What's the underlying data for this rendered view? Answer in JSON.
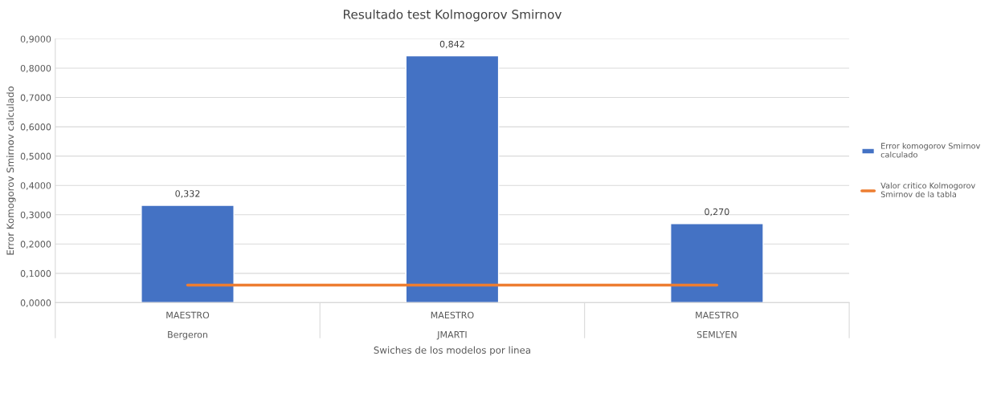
{
  "chart_data": {
    "type": "bar",
    "title": "Resultado test Kolmogorov Smirnov",
    "xlabel": "Swiches de los modelos por linea",
    "ylabel": "Error Komogorov Smirnov calculado",
    "categories": [
      "MAESTRO\nBergeron",
      "MAESTRO\nJMARTI",
      "MAESTRO\nSEMLYEN"
    ],
    "series": [
      {
        "name": "Error komogorov Smirnov\ncalculado",
        "color": "#4472c4",
        "values": [
          0.332,
          0.842,
          0.27
        ],
        "value_labels": [
          "0,332",
          "0,842",
          "0,270"
        ]
      },
      {
        "name": "Valor critico Kolmogorov\nSmirnov de la tabla",
        "type": "line",
        "color": "#ed7d31",
        "values": [
          0.06,
          0.06,
          0.06
        ]
      }
    ],
    "ylim": [
      0,
      0.9
    ],
    "yticks": [
      {
        "value": 0,
        "label": "0,0000"
      },
      {
        "value": 0.1,
        "label": "0,1000"
      },
      {
        "value": 0.2,
        "label": "0,2000"
      },
      {
        "value": 0.3,
        "label": "0,3000"
      },
      {
        "value": 0.4,
        "label": "0,4000"
      },
      {
        "value": 0.5,
        "label": "0,5000"
      },
      {
        "value": 0.6,
        "label": "0,6000"
      },
      {
        "value": 0.7,
        "label": "0,7000"
      },
      {
        "value": 0.8,
        "label": "0,8000"
      },
      {
        "value": 0.9,
        "label": "0,9000"
      }
    ],
    "grid": "y",
    "legend": "right",
    "marker": "none"
  }
}
